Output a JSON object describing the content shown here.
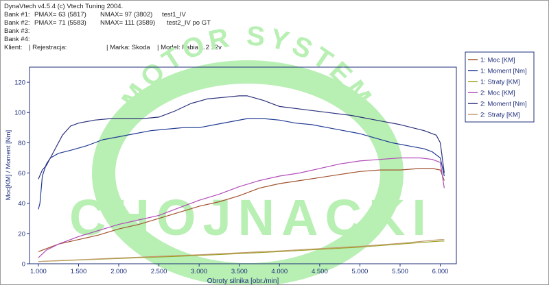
{
  "header": {
    "title": "DynaVtech v4.5.4 (c) Vtech Tuning 2004.",
    "bank1": {
      "label": "Bank #1:",
      "pmax": "PMAX= 63 (5817)",
      "nmax": "NMAX= 97 (3802)",
      "name": "test1_IV"
    },
    "bank2": {
      "label": "Bank #2:",
      "pmax": "PMAX= 71 (5583)",
      "nmax": "NMAX= 111 (3589)",
      "name": "test2_IV po GT"
    },
    "bank3": "Bank #3:",
    "bank4": "Bank #4:",
    "client": {
      "klient": "Klient:",
      "rejestracja": "| Rejestracja:",
      "marka": "| Marka: Skoda",
      "model": "| Model: Fabia 1.2 12v"
    }
  },
  "watermark": {
    "top": "MOTOR SYSTEM",
    "bottom": "CHOJNACKI"
  },
  "colors": {
    "plot_border": "#1d2d7a",
    "axis_text": "#1d2d7a",
    "watermark": "#b8efb3",
    "legend_border": "#1d2d7a"
  },
  "chart_data": {
    "type": "line",
    "xlabel": "Obroty silnika [obr./min]",
    "ylabel": "Moc[KM] / Moment [Nm]",
    "xlim": [
      890,
      6200
    ],
    "ylim": [
      0,
      130
    ],
    "xticks": [
      1000,
      1500,
      2000,
      2500,
      3000,
      3500,
      4000,
      4500,
      5000,
      5500,
      6000
    ],
    "xtick_labels": [
      "1.000",
      "1.500",
      "2.000",
      "2.500",
      "3.000",
      "3.500",
      "4.000",
      "4.500",
      "5.000",
      "5.500",
      "6.000"
    ],
    "yticks": [
      0,
      20,
      40,
      60,
      80,
      100,
      120
    ],
    "ytick_labels": [
      "0",
      "20",
      "40",
      "60",
      "80",
      "100",
      "120"
    ],
    "grid": false,
    "legend_position": "top-right",
    "series": [
      {
        "name": "1: Moc [KM]",
        "color": "#a0522d",
        "x": [
          1000,
          1100,
          1250,
          1500,
          1750,
          2000,
          2250,
          2500,
          2750,
          3000,
          3250,
          3500,
          3750,
          4000,
          4250,
          4500,
          4750,
          5000,
          5250,
          5500,
          5750,
          5900,
          6000,
          6050
        ],
        "y": [
          8,
          10,
          13,
          16,
          19,
          23,
          26,
          30,
          34,
          38,
          41,
          45,
          50,
          53,
          55,
          57,
          59,
          61,
          62,
          62,
          63,
          63,
          62,
          55
        ]
      },
      {
        "name": "1: Moment [Nm]",
        "color": "#1f3a93",
        "x": [
          1000,
          1020,
          1050,
          1100,
          1150,
          1250,
          1400,
          1600,
          1800,
          2000,
          2200,
          2400,
          2600,
          2800,
          3000,
          3200,
          3400,
          3600,
          3800,
          4000,
          4200,
          4400,
          4600,
          4800,
          5000,
          5200,
          5400,
          5600,
          5800,
          5900,
          6000,
          6050
        ],
        "y": [
          36,
          40,
          58,
          66,
          70,
          73,
          75,
          78,
          82,
          84,
          86,
          88,
          89,
          90,
          90,
          92,
          94,
          96,
          96,
          95,
          93,
          92,
          90,
          88,
          86,
          83,
          80,
          78,
          76,
          74,
          70,
          58
        ]
      },
      {
        "name": "1: Straty [KM]",
        "color": "#9aa020",
        "x": [
          1000,
          2000,
          3000,
          4000,
          5000,
          5500,
          6000,
          6050
        ],
        "y": [
          1.5,
          3.5,
          5.5,
          8,
          11,
          13,
          15,
          15
        ]
      },
      {
        "name": "2: Moc [KM]",
        "color": "#b04ab8",
        "x": [
          1000,
          1100,
          1250,
          1500,
          1750,
          2000,
          2250,
          2500,
          2750,
          3000,
          3250,
          3500,
          3750,
          4000,
          4250,
          4500,
          4750,
          5000,
          5250,
          5500,
          5750,
          5900,
          6000,
          6050
        ],
        "y": [
          4,
          9,
          13,
          18,
          22,
          26,
          29,
          32,
          37,
          42,
          46,
          51,
          55,
          58,
          60,
          63,
          66,
          68,
          69,
          70,
          70,
          69,
          67,
          50
        ]
      },
      {
        "name": "2: Moment [Nm]",
        "color": "#2a2f7a",
        "x": [
          1000,
          1050,
          1100,
          1200,
          1300,
          1400,
          1500,
          1700,
          1900,
          2100,
          2300,
          2500,
          2700,
          2900,
          3100,
          3300,
          3500,
          3600,
          3800,
          4000,
          4300,
          4600,
          4900,
          5200,
          5500,
          5800,
          5950,
          6000,
          6050
        ],
        "y": [
          56,
          62,
          65,
          75,
          85,
          91,
          93,
          95,
          96,
          96,
          96,
          97,
          101,
          106,
          109,
          110,
          111,
          111,
          108,
          104,
          102,
          100,
          98,
          95,
          92,
          88,
          85,
          80,
          60
        ]
      },
      {
        "name": "2: Straty [KM]",
        "color": "#c29a70",
        "x": [
          1000,
          2000,
          3000,
          4000,
          5000,
          5500,
          6000,
          6050
        ],
        "y": [
          1.5,
          3.8,
          6,
          8.5,
          11.5,
          13.5,
          16,
          16
        ]
      }
    ]
  }
}
